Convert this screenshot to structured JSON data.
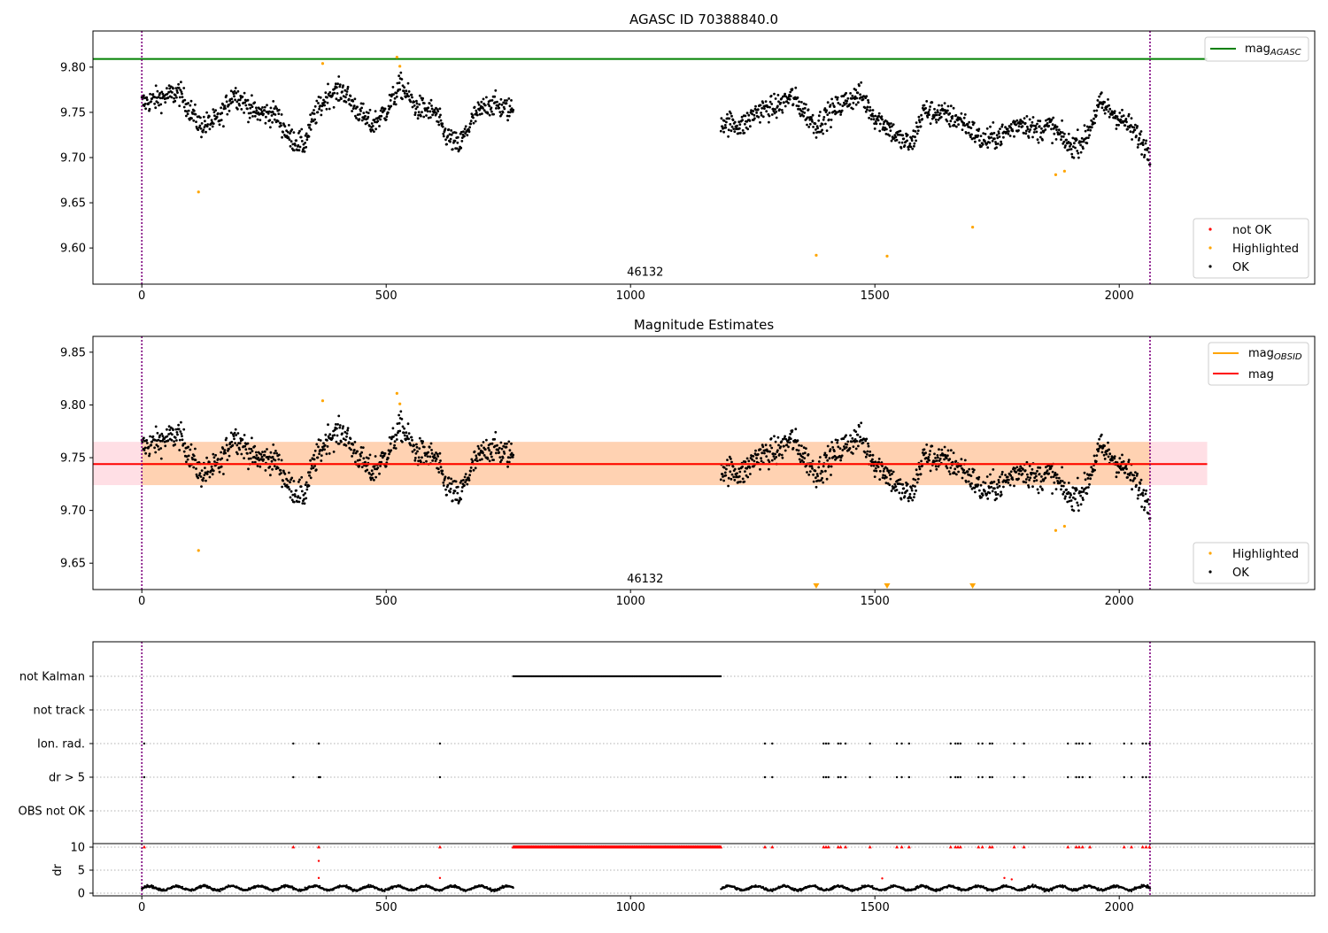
{
  "chart_data": [
    {
      "type": "scatter",
      "title": "AGASC ID 70388840.0",
      "xlim": [
        -100,
        2400
      ],
      "ylim": [
        9.56,
        9.84
      ],
      "xticks": [
        0,
        500,
        1000,
        1500,
        2000
      ],
      "yticks": [
        9.6,
        9.65,
        9.7,
        9.75,
        9.8
      ],
      "ytick_labels": [
        "9.60",
        "9.65",
        "9.70",
        "9.75",
        "9.80"
      ],
      "obsid_label": {
        "x": 1030,
        "y": 9.574,
        "text": "46132"
      },
      "obsid_boundaries": [
        0,
        2063
      ],
      "hline": {
        "name": "mag_AGASC",
        "value": 9.809,
        "x_end": 2180,
        "color": "#008000"
      },
      "ok_segments": [
        {
          "x0": 0,
          "x1": 760,
          "points": [
            [
              0,
              9.76
            ],
            [
              76,
              9.772
            ],
            [
              120,
              9.735
            ],
            [
              158,
              9.742
            ],
            [
              188,
              9.772
            ],
            [
              230,
              9.75
            ],
            [
              275,
              9.748
            ],
            [
              302,
              9.722
            ],
            [
              332,
              9.714
            ],
            [
              352,
              9.745
            ],
            [
              382,
              9.77
            ],
            [
              412,
              9.774
            ],
            [
              440,
              9.753
            ],
            [
              470,
              9.736
            ],
            [
              500,
              9.752
            ],
            [
              530,
              9.78
            ],
            [
              560,
              9.756
            ],
            [
              600,
              9.75
            ],
            [
              620,
              9.726
            ],
            [
              648,
              9.712
            ],
            [
              680,
              9.745
            ],
            [
              710,
              9.76
            ],
            [
              760,
              9.752
            ]
          ],
          "noise": 0.013
        },
        {
          "x0": 1185,
          "x1": 2063,
          "points": [
            [
              1185,
              9.74
            ],
            [
              1230,
              9.735
            ],
            [
              1260,
              9.752
            ],
            [
              1300,
              9.756
            ],
            [
              1330,
              9.768
            ],
            [
              1360,
              9.748
            ],
            [
              1380,
              9.735
            ],
            [
              1410,
              9.75
            ],
            [
              1440,
              9.762
            ],
            [
              1470,
              9.77
            ],
            [
              1500,
              9.745
            ],
            [
              1520,
              9.738
            ],
            [
              1550,
              9.72
            ],
            [
              1575,
              9.714
            ],
            [
              1600,
              9.752
            ],
            [
              1640,
              9.748
            ],
            [
              1680,
              9.74
            ],
            [
              1720,
              9.718
            ],
            [
              1760,
              9.725
            ],
            [
              1800,
              9.74
            ],
            [
              1830,
              9.73
            ],
            [
              1860,
              9.735
            ],
            [
              1900,
              9.712
            ],
            [
              1930,
              9.72
            ],
            [
              1960,
              9.76
            ],
            [
              1990,
              9.748
            ],
            [
              2020,
              9.735
            ],
            [
              2040,
              9.722
            ],
            [
              2063,
              9.705
            ]
          ],
          "noise": 0.013
        }
      ],
      "highlighted": [
        [
          116,
          9.662
        ],
        [
          370,
          9.804
        ],
        [
          522,
          9.811
        ],
        [
          528,
          9.801
        ],
        [
          1380,
          9.592
        ],
        [
          1525,
          9.591
        ],
        [
          1700,
          9.623
        ],
        [
          1870,
          9.681
        ],
        [
          1888,
          9.685
        ]
      ],
      "legend_upper": [
        {
          "label": "mag",
          "sub": "AGASC",
          "color": "#008000"
        }
      ],
      "legend_lower": [
        {
          "label": "not OK",
          "color": "#ff0000"
        },
        {
          "label": "Highlighted",
          "color": "#ffa500"
        },
        {
          "label": "OK",
          "color": "#000000"
        }
      ]
    },
    {
      "type": "scatter",
      "title": "Magnitude Estimates",
      "xlim": [
        -100,
        2400
      ],
      "ylim": [
        9.625,
        9.865
      ],
      "xticks": [
        0,
        500,
        1000,
        1500,
        2000
      ],
      "yticks": [
        9.65,
        9.7,
        9.75,
        9.8,
        9.85
      ],
      "ytick_labels": [
        "9.65",
        "9.70",
        "9.75",
        "9.80",
        "9.85"
      ],
      "obsid_label": {
        "x": 1030,
        "y": 9.636,
        "text": "46132"
      },
      "obsid_boundaries": [
        0,
        2063
      ],
      "mag": {
        "value": 9.744,
        "band": [
          9.724,
          9.765
        ],
        "x_end": 2180,
        "color": "#ff0000"
      },
      "mag_obsid": {
        "value": 9.744,
        "band": [
          9.724,
          9.765
        ],
        "x0": 0,
        "x1": 2063,
        "color": "#ffa500"
      },
      "offscale_markers": [
        1380,
        1525,
        1700
      ],
      "legend_upper": [
        {
          "label": "mag",
          "sub": "OBSID",
          "color": "#ffa500"
        },
        {
          "label": "mag",
          "sub": "",
          "color": "#ff0000"
        }
      ],
      "legend_lower": [
        {
          "label": "Highlighted",
          "color": "#ffa500"
        },
        {
          "label": "OK",
          "color": "#000000"
        }
      ]
    },
    {
      "type": "scatter",
      "title": "",
      "xlim": [
        -100,
        2400
      ],
      "xticks": [
        0,
        500,
        1000,
        1500,
        2000
      ],
      "flag_rows": [
        "not Kalman",
        "not track",
        "Ion. rad.",
        "dr > 5",
        "OBS not OK"
      ],
      "flags": {
        "not Kalman": {
          "ranges": [
            [
              760,
              1185
            ]
          ]
        },
        "not track": {
          "ranges": []
        },
        "Ion. rad.": {
          "x": [
            5,
            310,
            362,
            610,
            1275,
            1290,
            1395,
            1400,
            1405,
            1425,
            1430,
            1440,
            1490,
            1545,
            1555,
            1570,
            1655,
            1665,
            1670,
            1675,
            1712,
            1720,
            1735,
            1740,
            1785,
            1805,
            1895,
            1912,
            1918,
            1925,
            1940,
            2010,
            2025,
            2048,
            2055,
            2062
          ]
        },
        "dr > 5": {
          "x": [
            5,
            310,
            362,
            365,
            610,
            1275,
            1290,
            1395,
            1400,
            1405,
            1425,
            1430,
            1440,
            1490,
            1545,
            1555,
            1570,
            1655,
            1665,
            1670,
            1675,
            1712,
            1720,
            1735,
            1740,
            1785,
            1805,
            1895,
            1912,
            1918,
            1925,
            1940,
            2010,
            2025,
            2048,
            2055,
            2062
          ]
        },
        "OBS not OK": {
          "x": []
        }
      },
      "dr": {
        "ylabel": "dr",
        "ylim": [
          0,
          10
        ],
        "yticks": [
          0,
          5,
          10
        ],
        "cap_ranges": [
          [
            760,
            1185
          ]
        ],
        "cap_points": [
          5,
          310,
          362,
          610,
          1275,
          1290,
          1395,
          1400,
          1405,
          1425,
          1430,
          1440,
          1490,
          1545,
          1555,
          1570,
          1655,
          1665,
          1670,
          1675,
          1712,
          1720,
          1735,
          1740,
          1785,
          1805,
          1895,
          1912,
          1918,
          1925,
          1940,
          2010,
          2025,
          2048,
          2055,
          2062
        ],
        "outliers": [
          [
            362,
            7.0
          ],
          [
            362,
            3.3
          ],
          [
            610,
            3.3
          ],
          [
            1515,
            3.2
          ],
          [
            1765,
            3.3
          ],
          [
            1780,
            3.0
          ]
        ],
        "ok_ranges": [
          [
            0,
            760
          ],
          [
            1185,
            2063
          ]
        ],
        "typical": 1.0
      }
    }
  ]
}
